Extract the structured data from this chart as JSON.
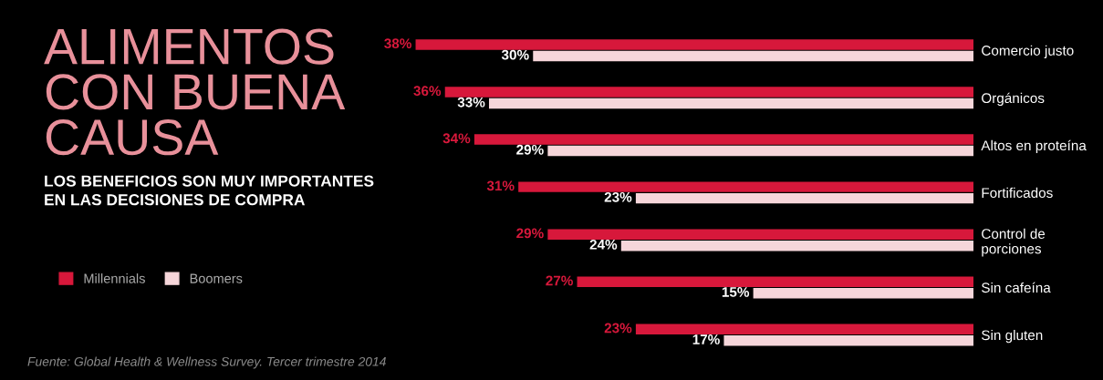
{
  "chart_data": {
    "type": "bar",
    "orientation": "horizontal",
    "title": "ALIMENTOS CON BUENA CAUSA",
    "subtitle": "LOS BENEFICIOS SON MUY IMPORTANTES EN LAS DECISIONES DE COMPRA",
    "categories": [
      "Comercio justo",
      "Orgánicos",
      "Altos en proteína",
      "Fortificados",
      "Control de porciones",
      "Sin cafeína",
      "Sin gluten"
    ],
    "series": [
      {
        "name": "Millennials",
        "color": "#d7183b",
        "values": [
          38,
          36,
          34,
          31,
          29,
          27,
          23
        ],
        "value_labels": [
          "38%",
          "36%",
          "34%",
          "31%",
          "29%",
          "27%",
          "23%"
        ]
      },
      {
        "name": "Boomers",
        "color": "#f6d6da",
        "values": [
          30,
          33,
          29,
          23,
          24,
          15,
          17
        ],
        "value_labels": [
          "30%",
          "33%",
          "29%",
          "23%",
          "24%",
          "15%",
          "17%"
        ]
      }
    ],
    "legend": "left",
    "grid": false,
    "annotations": [
      "Fuente: Global Health & Wellness Survey. Tercer trimestre 2014"
    ]
  }
}
